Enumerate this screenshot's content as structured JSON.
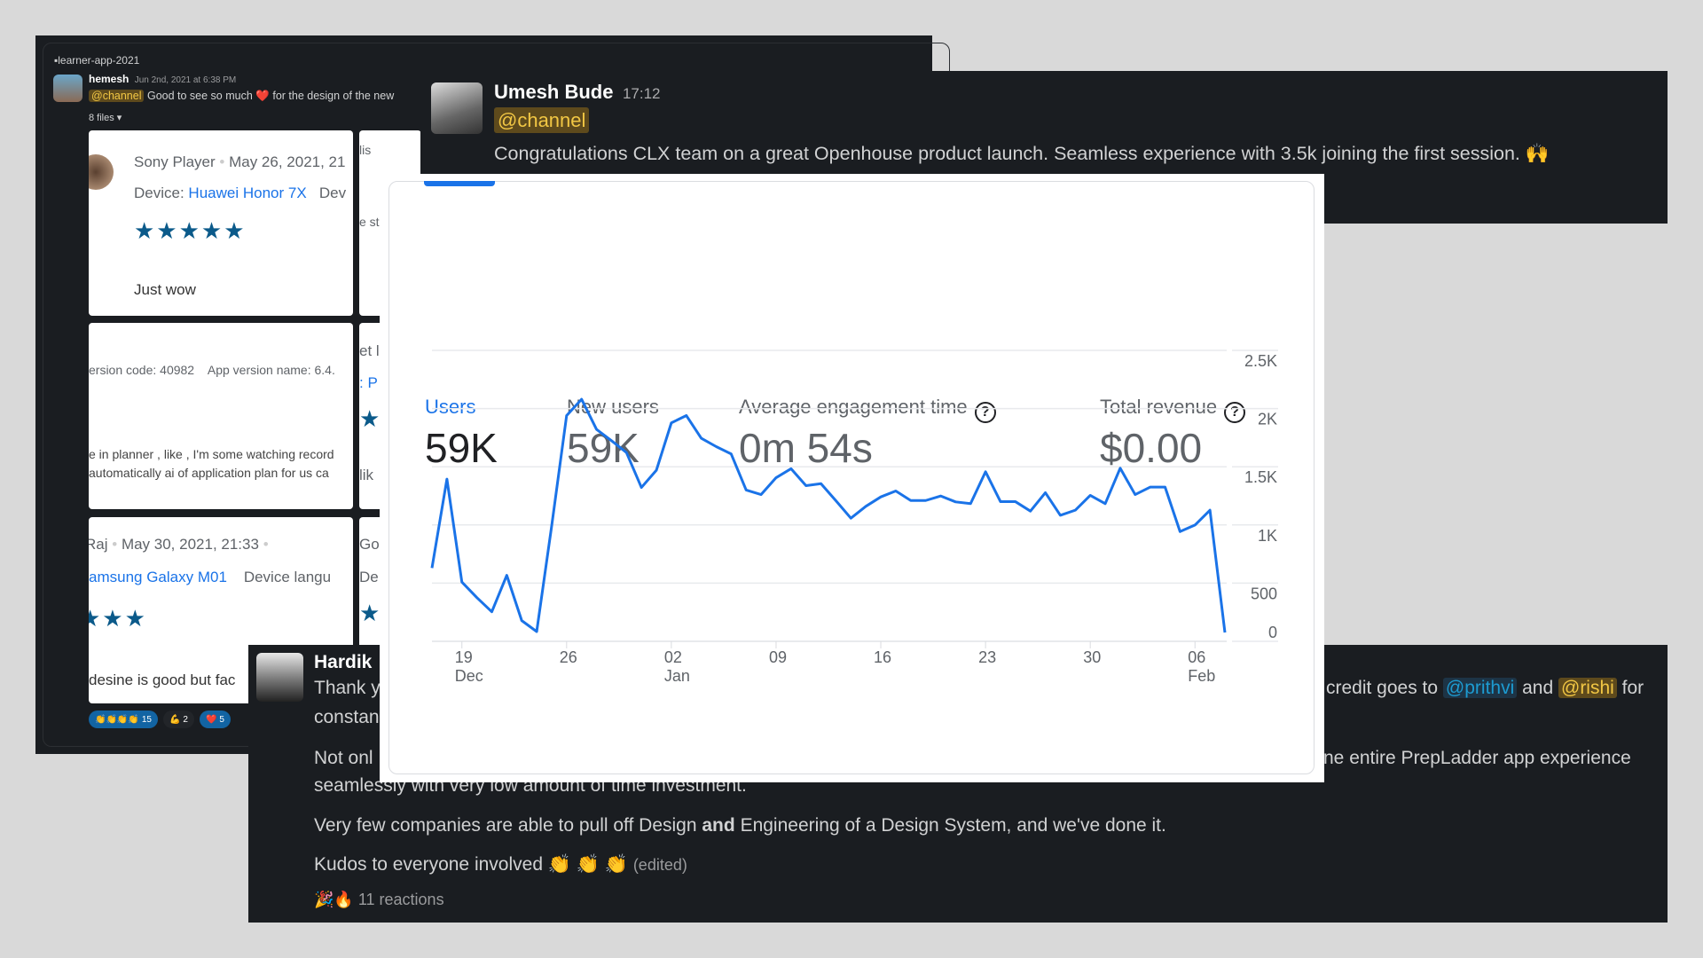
{
  "left_panel": {
    "channel": "learner-app-2021",
    "user": "hemesh",
    "time": "Jun 2nd, 2021 at 6:38 PM",
    "mention": "@channel",
    "text_a": "Good to see so much",
    "heart": "❤️",
    "text_b": "for the design of the new",
    "files": "8 files",
    "card1": {
      "name": "Sony Player",
      "date": "May 26, 2021, 21",
      "device_label": "Device:",
      "device": "Huawei Honor 7X",
      "extra": "Dev",
      "stars": "★★★★★",
      "review": "Just wow"
    },
    "card2": {
      "meta": "ersion code: 40982    App version name: 6.4.",
      "line1": "e in planner , like , I'm some watching record",
      "line2": "automatically ai of application plan for us ca"
    },
    "card3": {
      "name": "Raj",
      "date": "May 30, 2021, 21:33",
      "device": "amsung Galaxy M01",
      "extra": "Device langu",
      "stars_on": "★★",
      "stars_off": "★",
      "review": "desine is good but fac"
    },
    "col2": [
      "lis",
      "e st",
      "et l",
      ": P",
      "★",
      "lik",
      "Go",
      "De",
      "★"
    ],
    "reactions": [
      {
        "emoji": "👏👏👏👏",
        "count": "15"
      },
      {
        "emoji": "💪",
        "count": "2"
      },
      {
        "emoji": "❤️",
        "count": "5"
      }
    ]
  },
  "umesh": {
    "name": "Umesh Bude",
    "time": "17:12",
    "mention": "@channel",
    "text": "Congratulations CLX team on a great Openhouse product launch. Seamless experience with 3.5k joining the first session.",
    "emoji": "🙌"
  },
  "hardik": {
    "name": "Hardik",
    "l1a": "Thank y",
    "l1b": "credit goes to",
    "prithvi": "@prithvi",
    "and": "and",
    "rishi": "@rishi",
    "for": "for",
    "l2": "constan",
    "l3a": "Not onl",
    "l3b": "ne entire PrepLadder app experience",
    "l4": "seamlessly with very low amount of time investment.",
    "l5a": "Very few companies are able to pull off Design",
    "l5b": "and",
    "l5c": "Engineering of a Design System, and we've done it.",
    "l6": "Kudos to everyone involved",
    "claps": "👏 👏 👏",
    "edited": "(edited)",
    "reaction_emojis": "🎉🔥",
    "reactions": "11 reactions"
  },
  "metrics": [
    {
      "label": "Users",
      "value": "59K"
    },
    {
      "label": "New users",
      "value": "59K"
    },
    {
      "label": "Average engagement time",
      "value": "0m 54s"
    },
    {
      "label": "Total revenue",
      "value": "$0.00"
    }
  ],
  "chart_data": {
    "type": "line",
    "title": "",
    "xlabel": "",
    "ylabel": "Users",
    "series": [
      {
        "name": "Users",
        "color": "#1a73e8",
        "values": [
          630,
          1394,
          509,
          376,
          254,
          567,
          178,
          84,
          990,
          1940,
          2080,
          1821,
          1724,
          1622,
          1322,
          1470,
          1877,
          1940,
          1745,
          1673,
          1610,
          1300,
          1261,
          1406,
          1483,
          1338,
          1355,
          1208,
          1058,
          1160,
          1241,
          1292,
          1210,
          1210,
          1249,
          1198,
          1183,
          1457,
          1200,
          1200,
          1119,
          1277,
          1083,
          1127,
          1254,
          1183,
          1488,
          1261,
          1325,
          1325,
          943,
          999,
          1127,
          76
        ]
      }
    ],
    "x_start": "Dec 17",
    "x_end": "Feb 8",
    "ylim": [
      0,
      2500
    ],
    "yticks": [
      {
        "v": 2500,
        "label": "2.5K"
      },
      {
        "v": 2000,
        "label": "2K"
      },
      {
        "v": 1500,
        "label": "1.5K"
      },
      {
        "v": 1000,
        "label": "1K"
      },
      {
        "v": 500,
        "label": "500"
      },
      {
        "v": 0,
        "label": "0"
      }
    ],
    "xticks": [
      {
        "day": 2,
        "label": "19",
        "sub": "Dec"
      },
      {
        "day": 9,
        "label": "26",
        "sub": ""
      },
      {
        "day": 16,
        "label": "02",
        "sub": "Jan"
      },
      {
        "day": 23,
        "label": "09",
        "sub": ""
      },
      {
        "day": 30,
        "label": "16",
        "sub": ""
      },
      {
        "day": 37,
        "label": "23",
        "sub": ""
      },
      {
        "day": 44,
        "label": "30",
        "sub": ""
      },
      {
        "day": 51,
        "label": "06",
        "sub": "Feb"
      }
    ],
    "grid": true
  }
}
